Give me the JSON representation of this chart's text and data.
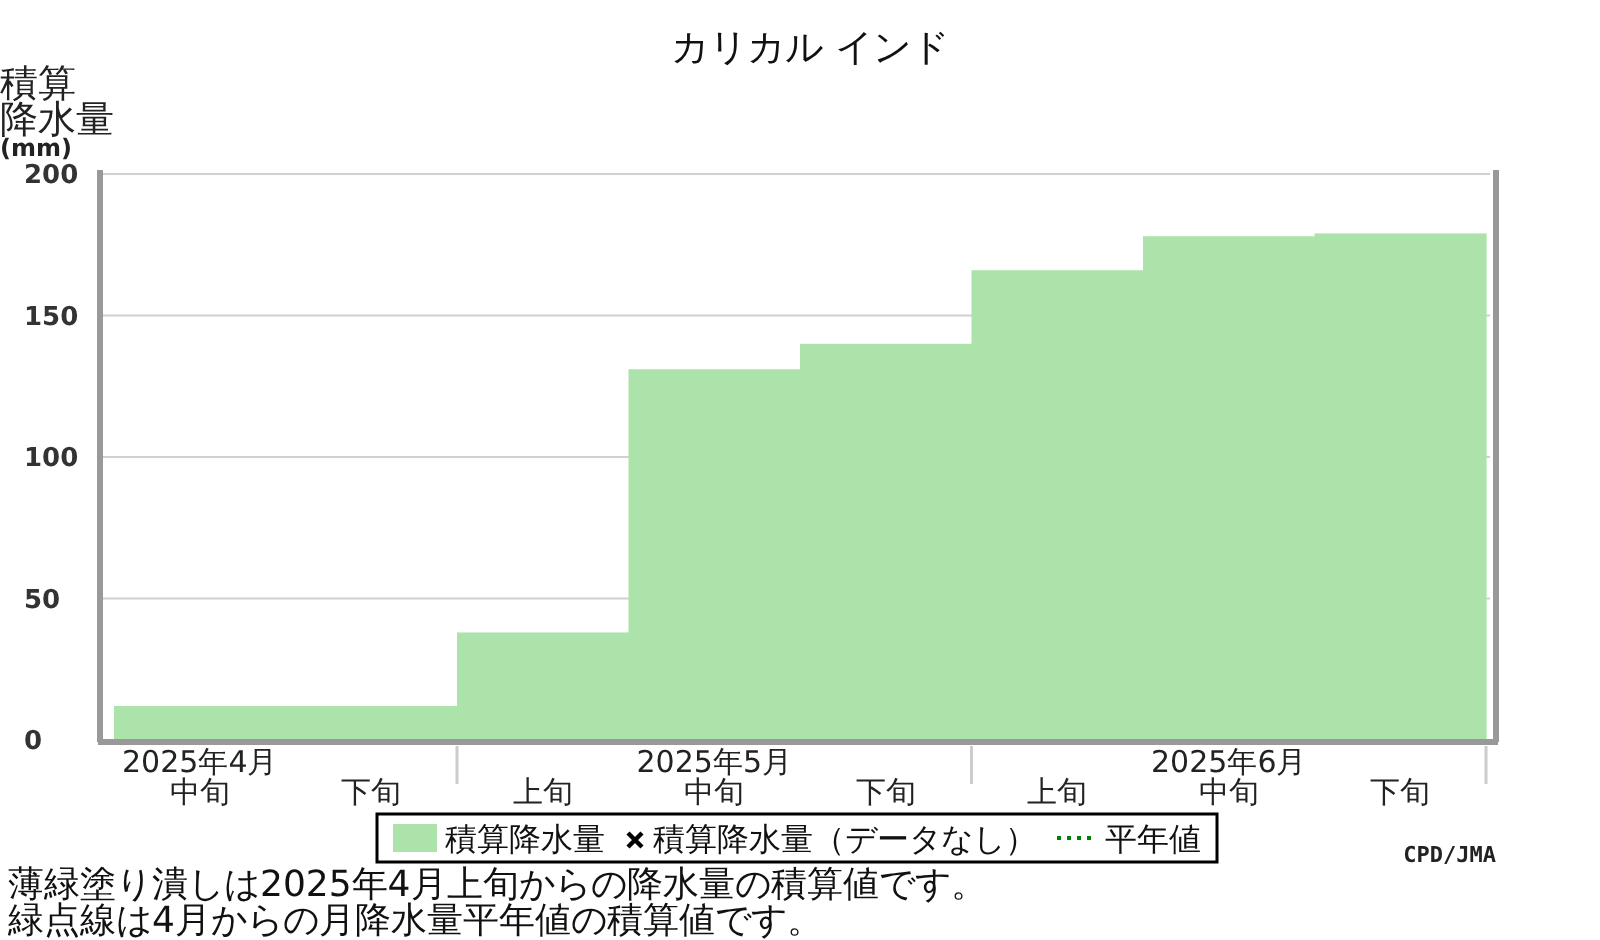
{
  "chart_data": {
    "type": "bar",
    "title": "カリカル インド",
    "ylabel": "積算降水量(mm)",
    "categories": [
      "2025年4月中旬",
      "下旬",
      "上旬",
      "2025年5月中旬",
      "下旬",
      "上旬",
      "2025年6月中旬",
      "下旬"
    ],
    "series": [
      {
        "name": "積算降水量",
        "color": "#abe3aa",
        "values": [
          12,
          12,
          38,
          131,
          140,
          166,
          178,
          179
        ]
      },
      {
        "name": "積算降水量（データなし）",
        "type": "scatter",
        "marker": "cross",
        "color": "#000000",
        "values": [
          null,
          null,
          null,
          null,
          null,
          null,
          null,
          null
        ]
      },
      {
        "name": "平年値",
        "type": "line",
        "line_style": "dotted",
        "color": "#008000",
        "values": [
          null,
          null,
          null,
          null,
          null,
          null,
          null,
          null
        ]
      }
    ],
    "ylim": [
      0,
      200
    ],
    "yticks": [
      0,
      50,
      100,
      150,
      200
    ],
    "grid": "y",
    "legend": "bottom",
    "annotations": [
      "CPD/JMA",
      "薄緑塗り潰しは2025年4月上旬からの降水量の積算値です。",
      "緑点線は4月からの月降水量平年値の積算値です。"
    ]
  }
}
